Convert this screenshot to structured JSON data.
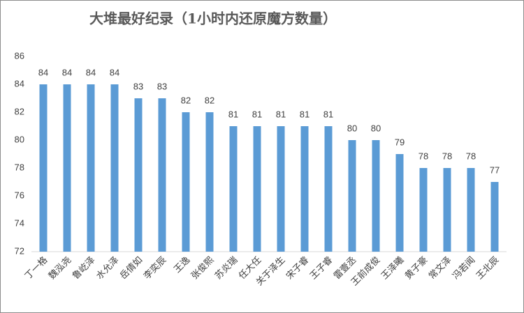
{
  "chart_data": {
    "type": "bar",
    "title": "大堆最好纪录（1小时内还原魔方数量）",
    "categories": [
      "丁一格",
      "魏泓尧",
      "鲁屹泽",
      "水允泽",
      "岳倩如",
      "李奕辰",
      "王逸",
      "张俊熙",
      "苏炎瑞",
      "任大任",
      "关于泽生",
      "宋子睿",
      "王子睿",
      "雷壹丞",
      "王前成俊",
      "王泽曦",
      "黄子豪",
      "常文泽",
      "冯若闻",
      "王北辰"
    ],
    "values": [
      84,
      84,
      84,
      84,
      83,
      83,
      82,
      82,
      81,
      81,
      81,
      81,
      81,
      80,
      80,
      79,
      78,
      78,
      78,
      77
    ],
    "color": "#5b9bd5",
    "ylim": [
      72,
      86
    ],
    "yticks": [
      72,
      74,
      76,
      78,
      80,
      82,
      84,
      86
    ],
    "grid": false
  }
}
